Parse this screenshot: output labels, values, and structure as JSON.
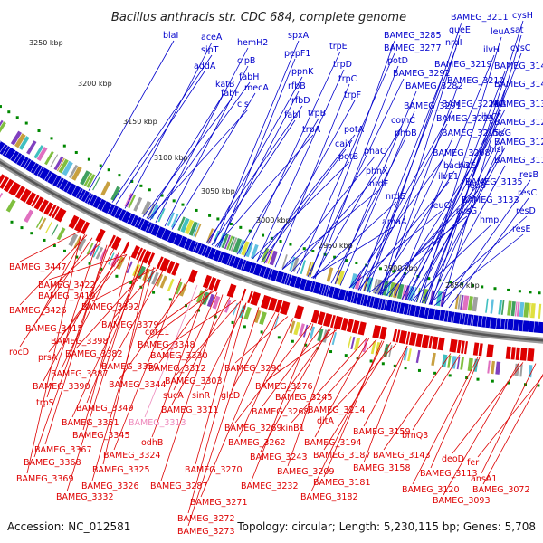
{
  "title": "Bacillus anthracis str. CDC 684, complete genome",
  "footer": {
    "accession": "Accession: NC_012581",
    "info": "Topology: circular; Length: 5,230,115 bp; Genes: 5,708"
  },
  "colors": {
    "background": "#ffffff",
    "forward_genes": "#0000cc",
    "reverse_genes": "#dd0000",
    "highlight_label": "#ee88bb",
    "backbone": "#777777",
    "dots": "#008800"
  },
  "kbp_labels": [
    "3250 kbp",
    "3200 kbp",
    "3150 kbp",
    "3100 kbp",
    "3050 kbp",
    "3000 kbp",
    "2950 kbp",
    "2900 kbp",
    "2850 kbp"
  ],
  "blue_labels": [
    "blaI",
    "aceA",
    "sipT",
    "hemH2",
    "addA",
    "clpB",
    "fabH",
    "katB",
    "fabF",
    "mecA",
    "cls",
    "spxA",
    "pepF1",
    "ppnK",
    "rfbB",
    "rfbD",
    "fabI",
    "trpB",
    "trpA",
    "trpE",
    "trpD",
    "trpC",
    "trpF",
    "BAMEG_3285",
    "BAMEG_3277",
    "potD",
    "BAMEG_3292",
    "BAMEG_3282",
    "BAMEG_3291",
    "comC",
    "phbB",
    "potA",
    "caiY",
    "potB",
    "phaC",
    "phnX",
    "nrdF",
    "nrdE",
    "amaA",
    "BAMEG_3211",
    "queE",
    "nrdI",
    "BAMEG_3219",
    "BAMEG_3210",
    "BAMEG_3224",
    "BAMEG_3223",
    "BAMEG_3215",
    "BAMEG_3208",
    "bacA2",
    "ilvE1",
    "leuC",
    "cysG",
    "hmp",
    "leuA",
    "ilvH",
    "ilvB",
    "ilvC1",
    "hisG",
    "hisI",
    "hisE",
    "leuB",
    "cysH",
    "sat",
    "cysC",
    "BAMEG_3146",
    "BAMEG_3142",
    "BAMEG_3136",
    "BAMEG_3129",
    "BAMEG_3123",
    "BAMEG_3119",
    "BAMEG_3135",
    "BAMEG_3133",
    "resB",
    "resC",
    "resD",
    "resE"
  ],
  "red_labels": [
    "BAMEG_3447",
    "BAMEG_3422",
    "BAMEG_3419",
    "BAMEG_3426",
    "BAMEG_3392",
    "BAMEG_3415",
    "BAMEG_3379",
    "BAMEG_3398",
    "cotZ1",
    "rocD",
    "BAMEG_3348",
    "prsA",
    "BAMEG_3382",
    "BAMEG_3330",
    "BAMEG_3387",
    "BAMEG_3350",
    "BAMEG_3312",
    "BAMEG_3290",
    "BAMEG_3390",
    "BAMEG_3344",
    "BAMEG_3303",
    "trpS",
    "sucA",
    "sinR",
    "BAMEG_3276",
    "BAMEG_3349",
    "BAMEG_3311",
    "glcD",
    "BAMEG_3245",
    "BAMEG_3268",
    "BAMEG_3214",
    "BAMEG_3351",
    "BAMEG_3269",
    "kinB1",
    "ditA",
    "BAMEG_3345",
    "BAMEG_3262",
    "BAMEG_3194",
    "BAMEG_3159",
    "brnQ3",
    "BAMEG_3367",
    "BAMEG_3324",
    "odhB",
    "BAMEG_3187",
    "BAMEG_3143",
    "BAMEG_3368",
    "BAMEG_3243",
    "deoD",
    "BAMEG_3369",
    "BAMEG_3325",
    "BAMEG_3270",
    "BAMEG_3209",
    "BAMEG_3158",
    "BAMEG_3326",
    "BAMEG_3181",
    "BAMEG_3113",
    "fer",
    "BAMEG_3332",
    "BAMEG_3287",
    "BAMEG_3232",
    "BAMEG_3182",
    "BAMEG_3120",
    "ansA1",
    "BAMEG_3072",
    "BAMEG_3271",
    "BAMEG_3093",
    "BAMEG_3272",
    "BAMEG_3273"
  ],
  "highlight_labels": [
    "BAMEG_3313"
  ]
}
